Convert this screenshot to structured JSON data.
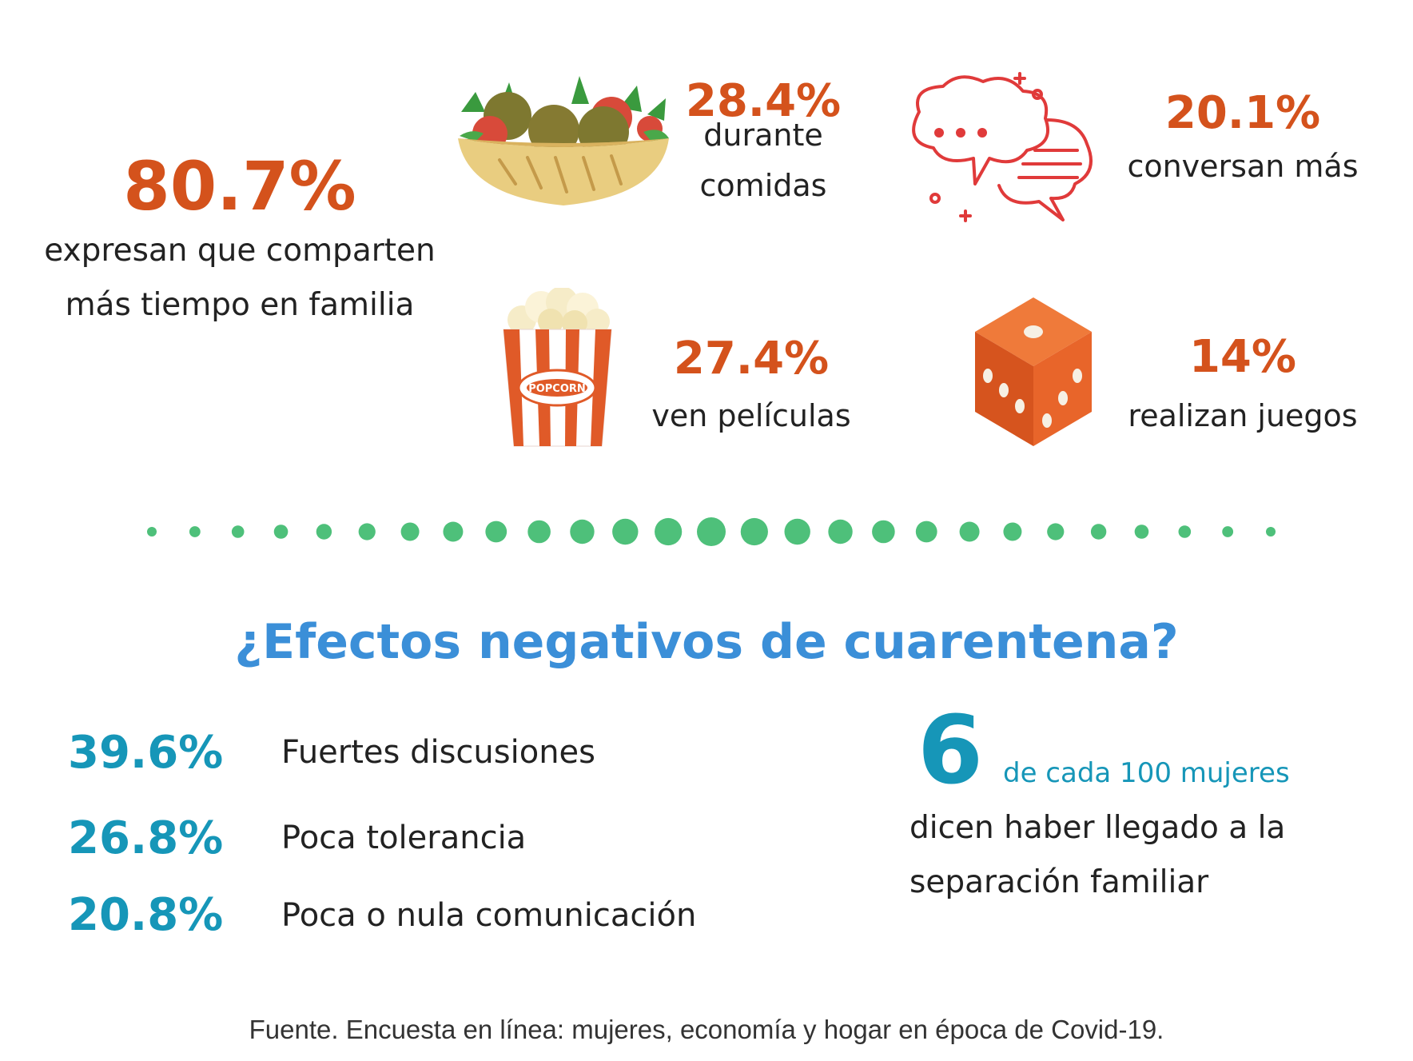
{
  "colors": {
    "orange": "#d4521c",
    "blue_title": "#3b8fd8",
    "teal": "#1696b8",
    "green_dots": "#4ec07a",
    "text": "#222222"
  },
  "positive": {
    "main": {
      "percent": "80.7%",
      "label_line1": "expresan que comparten",
      "label_line2": "más tiempo en familia"
    },
    "meals": {
      "icon": "salad-bowl-icon",
      "percent": "28.4%",
      "label_line1": "durante",
      "label_line2": "comidas"
    },
    "talk": {
      "icon": "speech-bubbles-icon",
      "percent": "20.1%",
      "label": "conversan más"
    },
    "movies": {
      "icon": "popcorn-icon",
      "icon_text": "POPCORN",
      "percent": "27.4%",
      "label": "ven películas"
    },
    "games": {
      "icon": "dice-icon",
      "percent": "14%",
      "label": "realizan juegos"
    }
  },
  "divider": {
    "icon": "dotted-divider"
  },
  "negative": {
    "title": "¿Efectos negativos de cuarentena?",
    "items": [
      {
        "percent": "39.6%",
        "label": "Fuertes discusiones"
      },
      {
        "percent": "26.8%",
        "label": "Poca tolerancia"
      },
      {
        "percent": "20.8%",
        "label": "Poca o nula comunicación"
      }
    ],
    "separation": {
      "number": "6",
      "unit": "de cada 100 mujeres",
      "line1": "dicen haber llegado a la",
      "line2": "separación familiar"
    }
  },
  "source": "Fuente. Encuesta en línea: mujeres, economía y hogar en época de Covid-19."
}
